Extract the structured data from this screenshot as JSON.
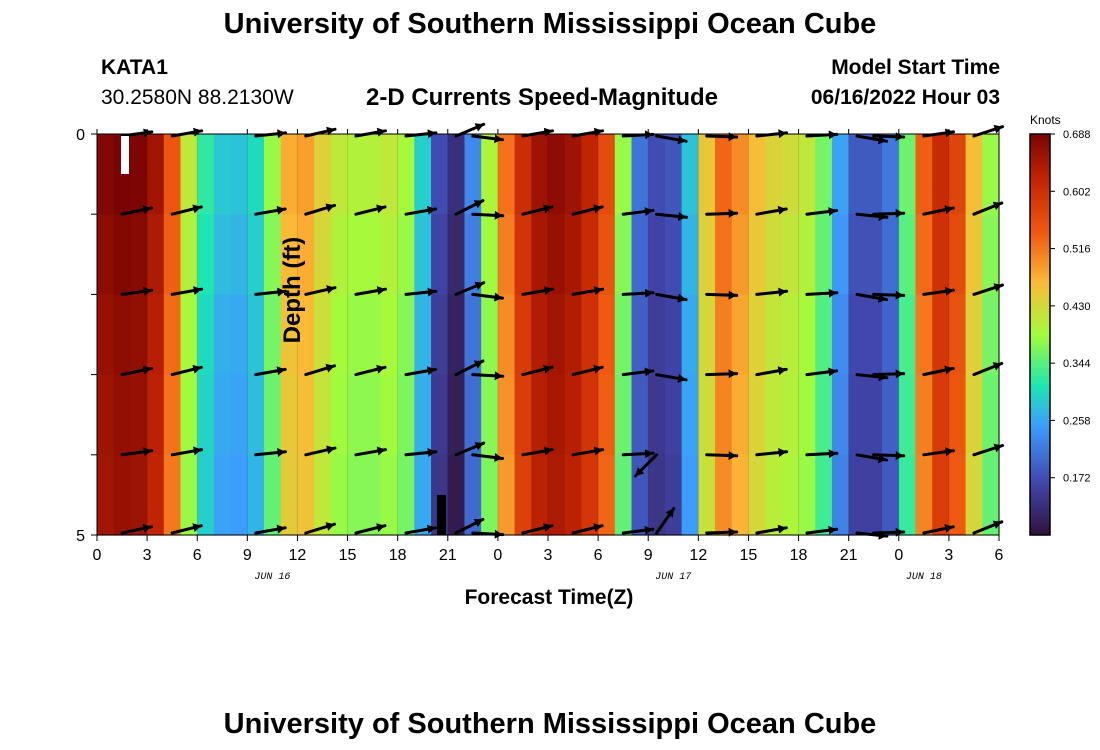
{
  "header": {
    "title": "University of Southern Mississippi Ocean Cube",
    "station_id": "KATA1",
    "coords": "30.2580N  88.2130W",
    "plot_title": "2-D Currents Speed-Magnitude",
    "model_start_label": "Model Start Time",
    "model_start_value": "06/16/2022 Hour 03"
  },
  "footer": {
    "title": "University of Southern Mississippi Ocean Cube"
  },
  "chart_data": {
    "type": "heatmap",
    "title": "2-D Currents Speed-Magnitude",
    "xlabel": "Forecast Time(Z)",
    "ylabel": "Depth (ft)",
    "x_range_hours": [
      0,
      54
    ],
    "y_range": [
      0,
      5
    ],
    "x_tick_labels": [
      "0",
      "3",
      "6",
      "9",
      "12",
      "15",
      "18",
      "21",
      "0",
      "3",
      "6",
      "9",
      "12",
      "15",
      "18",
      "21",
      "0",
      "3",
      "6"
    ],
    "y_tick_labels": [
      "0",
      "5"
    ],
    "date_labels": [
      {
        "label": "JUN 16",
        "hour": 10.5
      },
      {
        "label": "JUN 17",
        "hour": 34.5
      },
      {
        "label": "JUN 18",
        "hour": 49.5
      }
    ],
    "colorbar": {
      "unit": "Knots",
      "min": 0.086,
      "max": 0.688,
      "ticks": [
        "0.688",
        "0.602",
        "0.516",
        "0.430",
        "0.344",
        "0.258",
        "0.172"
      ],
      "tick_values": [
        0.688,
        0.602,
        0.516,
        0.43,
        0.344,
        0.258,
        0.172
      ]
    },
    "speed_by_hour": [
      0.65,
      0.67,
      0.67,
      0.66,
      0.6,
      0.45,
      0.33,
      0.27,
      0.26,
      0.26,
      0.3,
      0.42,
      0.49,
      0.44,
      0.4,
      0.38,
      0.38,
      0.38,
      0.4,
      0.34,
      0.2,
      0.1,
      0.12,
      0.3,
      0.45,
      0.55,
      0.62,
      0.65,
      0.65,
      0.62,
      0.58,
      0.5,
      0.22,
      0.16,
      0.14,
      0.18,
      0.34,
      0.52,
      0.5,
      0.46,
      0.42,
      0.41,
      0.4,
      0.38,
      0.3,
      0.17,
      0.16,
      0.17,
      0.22,
      0.45,
      0.58,
      0.6,
      0.5,
      0.38,
      0.34
    ],
    "column_samples": [
      {
        "hour": 0.5,
        "speed": 0.65
      },
      {
        "hour": 3.5,
        "speed": 0.6
      },
      {
        "hour": 7.5,
        "speed": 0.27
      },
      {
        "hour": 11.5,
        "speed": 0.48
      },
      {
        "hour": 14.5,
        "speed": 0.38
      },
      {
        "hour": 20.5,
        "speed": 0.11
      },
      {
        "hour": 26.5,
        "speed": 0.65
      },
      {
        "hour": 33.5,
        "speed": 0.15
      },
      {
        "hour": 37.5,
        "speed": 0.51
      },
      {
        "hour": 42.5,
        "speed": 0.4
      },
      {
        "hour": 45.5,
        "speed": 0.16
      },
      {
        "hour": 50.5,
        "speed": 0.59
      }
    ],
    "vector_hours": [
      1.5,
      4.5,
      9.5,
      12.5,
      15.5,
      18.5,
      21.5,
      22.5,
      25.5,
      28.5,
      31.5,
      33.5,
      36.5,
      39.5,
      42.5,
      45.5,
      46.5,
      49.5,
      52.5
    ],
    "vector_depths": [
      0,
      1,
      2,
      3,
      4,
      5
    ],
    "vector_angles_deg": [
      10,
      12,
      8,
      15,
      12,
      8,
      25,
      -5,
      12,
      12,
      5,
      -8,
      0,
      8,
      5,
      -8,
      0,
      10,
      20
    ],
    "special_vectors": [
      {
        "hour": 33.5,
        "depth": 3,
        "angle_deg": -10
      },
      {
        "hour": 33.5,
        "depth": 4,
        "angle_deg": -135
      },
      {
        "hour": 33.5,
        "depth": 5,
        "angle_deg": 55
      }
    ]
  }
}
